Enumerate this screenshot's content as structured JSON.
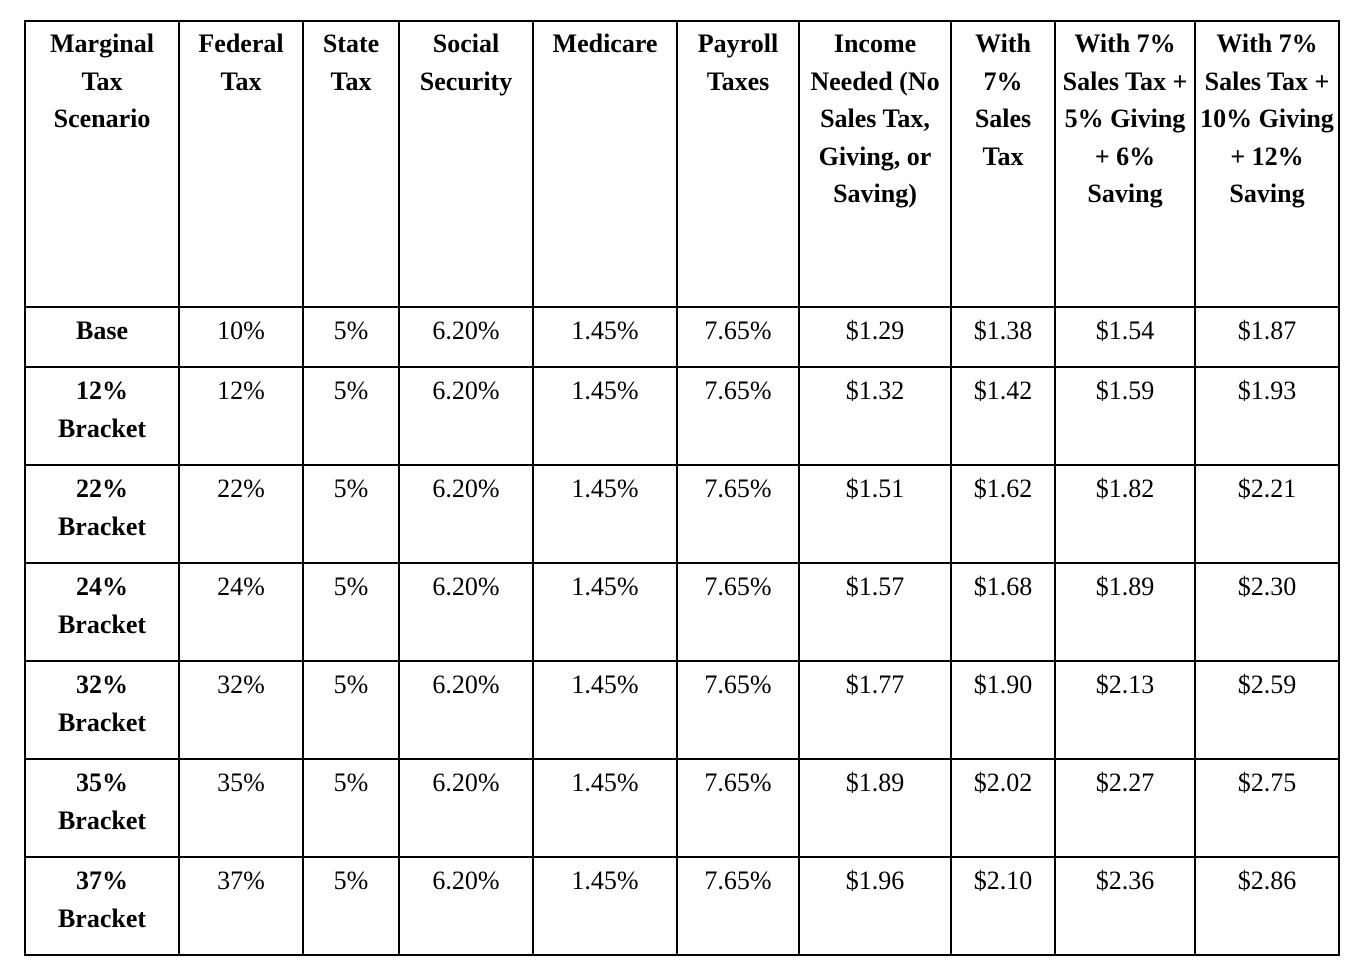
{
  "table": {
    "headers": [
      "Marginal Tax Scenario",
      "Federal Tax",
      "State Tax",
      "Social Security",
      "Medicare",
      "Payroll Taxes",
      "Income Needed (No Sales Tax, Giving, or Saving)",
      "With 7% Sales Tax",
      "With 7% Sales Tax + 5% Giving + 6% Saving",
      "With 7% Sales Tax + 10% Giving + 12% Saving"
    ],
    "rows": [
      [
        "Base",
        "10%",
        "5%",
        "6.20%",
        "1.45%",
        "7.65%",
        "$1.29",
        "$1.38",
        "$1.54",
        "$1.87"
      ],
      [
        "12% Bracket",
        "12%",
        "5%",
        "6.20%",
        "1.45%",
        "7.65%",
        "$1.32",
        "$1.42",
        "$1.59",
        "$1.93"
      ],
      [
        "22% Bracket",
        "22%",
        "5%",
        "6.20%",
        "1.45%",
        "7.65%",
        "$1.51",
        "$1.62",
        "$1.82",
        "$2.21"
      ],
      [
        "24% Bracket",
        "24%",
        "5%",
        "6.20%",
        "1.45%",
        "7.65%",
        "$1.57",
        "$1.68",
        "$1.89",
        "$2.30"
      ],
      [
        "32% Bracket",
        "32%",
        "5%",
        "6.20%",
        "1.45%",
        "7.65%",
        "$1.77",
        "$1.90",
        "$2.13",
        "$2.59"
      ],
      [
        "35% Bracket",
        "35%",
        "5%",
        "6.20%",
        "1.45%",
        "7.65%",
        "$1.89",
        "$2.02",
        "$2.27",
        "$2.75"
      ],
      [
        "37% Bracket",
        "37%",
        "5%",
        "6.20%",
        "1.45%",
        "7.65%",
        "$1.96",
        "$2.10",
        "$2.36",
        "$2.86"
      ]
    ]
  }
}
